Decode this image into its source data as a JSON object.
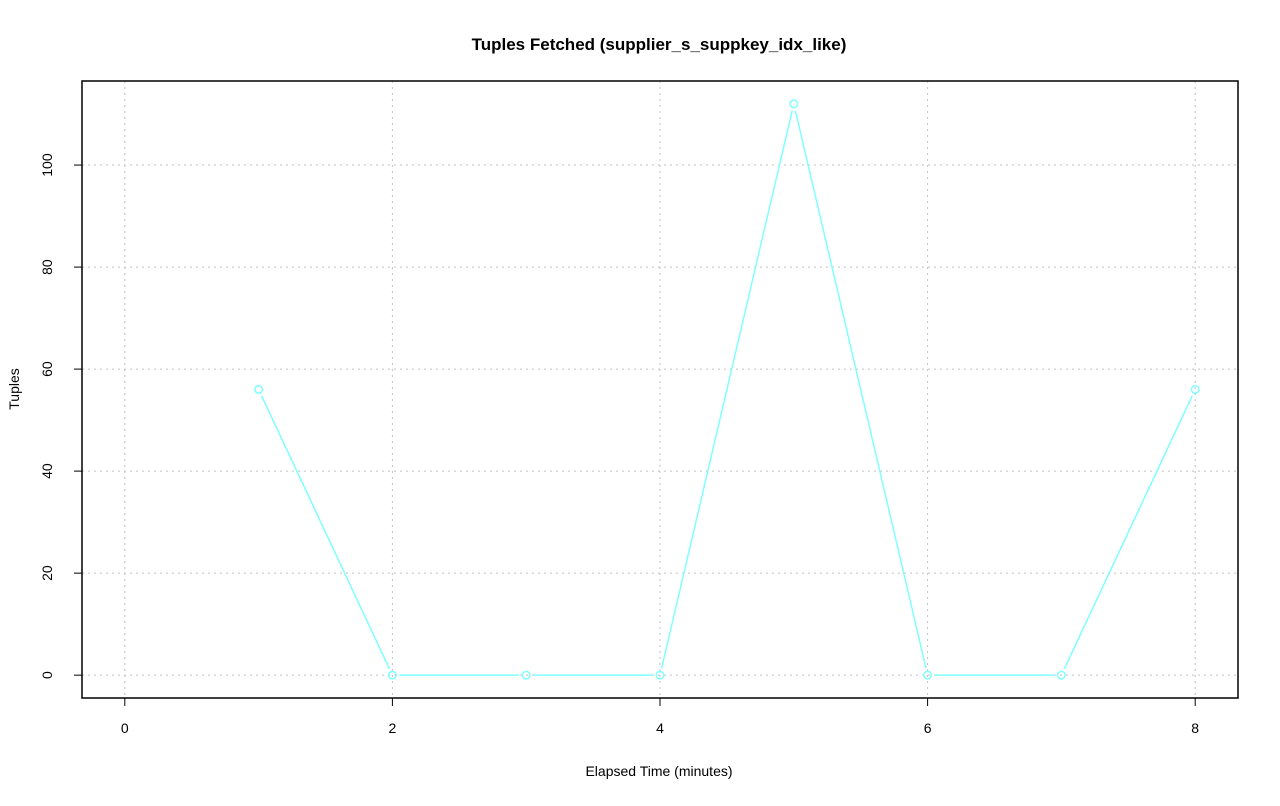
{
  "chart_data": {
    "type": "line",
    "title": "Tuples Fetched (supplier_s_suppkey_idx_like)",
    "xlabel": "Elapsed Time (minutes)",
    "ylabel": "Tuples",
    "x": [
      1,
      2,
      3,
      4,
      5,
      6,
      7,
      8
    ],
    "series": [
      {
        "values": [
          56,
          0,
          0,
          0,
          112,
          0,
          0,
          56
        ]
      }
    ],
    "xlim": [
      0,
      8
    ],
    "ylim": [
      0,
      112
    ],
    "xticks": [
      0,
      2,
      4,
      6,
      8
    ],
    "yticks": [
      0,
      20,
      40,
      60,
      80,
      100
    ],
    "grid": true,
    "legend": "none",
    "colors": {
      "series": "#80ffff",
      "grid": "#c0c0c0"
    }
  }
}
